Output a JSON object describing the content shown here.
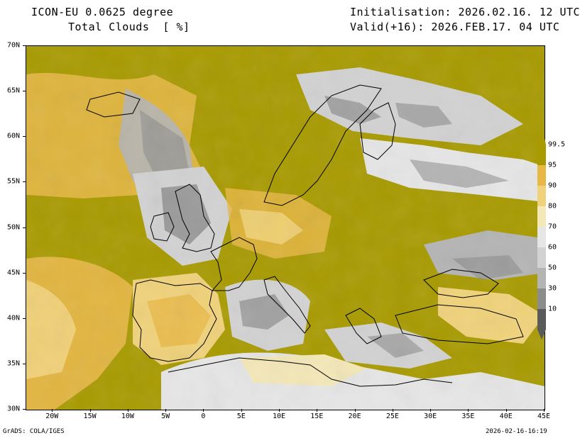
{
  "header": {
    "model_line": "ICON-EU 0.0625 degree",
    "field_line": "Total Clouds  [ %]",
    "init_line": "Initialisation: 2026.02.16. 12 UTC",
    "valid_line": "Valid(+16): 2026.FEB.17. 04 UTC"
  },
  "map": {
    "lat_labels": [
      "70N",
      "65N",
      "60N",
      "55N",
      "50N",
      "45N",
      "40N",
      "35N",
      "30N"
    ],
    "lon_labels": [
      "20W",
      "15W",
      "10W",
      "5W",
      "0",
      "5E",
      "10E",
      "15E",
      "20E",
      "25E",
      "30E",
      "35E",
      "40E",
      "45E"
    ],
    "lat_values": [
      70,
      65,
      60,
      55,
      50,
      45,
      40,
      35,
      30
    ],
    "lon_values": [
      -20,
      -15,
      -10,
      -5,
      0,
      5,
      10,
      15,
      20,
      25,
      30,
      35,
      40,
      45
    ],
    "extent": {
      "lon_min": -23.5,
      "lon_max": 45,
      "lat_min": 30,
      "lat_max": 70
    }
  },
  "legend": {
    "labels": [
      "99.5",
      "95",
      "90",
      "80",
      "70",
      "60",
      "50",
      "30",
      "10"
    ],
    "bins": [
      {
        "from": "10",
        "color": "#5a5a5a"
      },
      {
        "from": "30",
        "color": "#8c8c8c"
      },
      {
        "from": "50",
        "color": "#b4b4b4"
      },
      {
        "from": "60",
        "color": "#d2d2d2"
      },
      {
        "from": "70",
        "color": "#e6e6e6"
      },
      {
        "from": "80",
        "color": "#f4e8b8"
      },
      {
        "from": "90",
        "color": "#f0d27a"
      },
      {
        "from": "95",
        "color": "#e8b846"
      },
      {
        "from": "99.5",
        "color": "#a89a00"
      }
    ]
  },
  "colors": {
    "overcast": "#a89a00",
    "high": "#e8b846",
    "medium": "#f0d27a",
    "light": "#f4e8b8",
    "clear": "#e6e6e6",
    "broken_gray": "#b4b4b4",
    "dark_gray": "#8c8c8c"
  },
  "footer": {
    "left": "GrADS: COLA/IGES",
    "right": "2026-02-16-16:19"
  }
}
